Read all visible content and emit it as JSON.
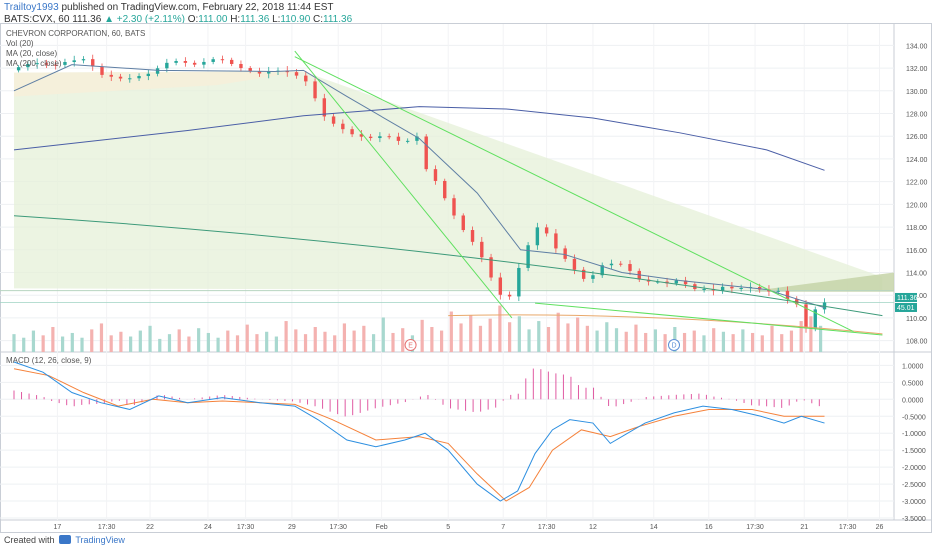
{
  "header": {
    "author": "Trailtoy1993",
    "published_text": "published on TradingView.com, February 22, 2018 11:44 EST",
    "symbol_line": "BATS:CVX, 60",
    "last_price": "111.36",
    "change_text": "▲ +2.30 (+2.11%)",
    "o_label": "O:",
    "o": "111.00",
    "h_label": "H:",
    "h": "111.36",
    "l_label": "L:",
    "l": "110.90",
    "c_label": "C:",
    "c": "111.36"
  },
  "legend": {
    "title": "CHEVRON CORPORATION, 60, BATS",
    "vol": "Vol (20)",
    "ma1": "MA (20, close)",
    "ma2": "MA (200, close)"
  },
  "macd_label": "MACD (12, 26, close, 9)",
  "footer": {
    "created_with": "Created with",
    "brand": "TradingView"
  },
  "price_badges": {
    "last": "111.36",
    "second": "45.01"
  },
  "colors": {
    "up": "#26a69a",
    "down": "#ef5350",
    "ma20": "#5f7fa4",
    "ma200": "#4a5ea6",
    "trend": "#5fe05f",
    "macd": "#2d8fe0",
    "signal": "#f5823b",
    "hist": "#e05aa2",
    "fill": "#e6f0d8"
  },
  "chart_data": [
    {
      "type": "candlestick",
      "title": "CHEVRON CORPORATION, 60, BATS",
      "ylim": [
        107,
        135
      ],
      "y_ticks": [
        108,
        110,
        112,
        114,
        116,
        118,
        120,
        122,
        124,
        126,
        128,
        130,
        132,
        134
      ],
      "x_tick_labels": [
        "17",
        "17:30",
        "22",
        "24",
        "17:30",
        "29",
        "17:30",
        "Feb",
        "5",
        "7",
        "17:30",
        "12",
        "14",
        "16",
        "17:30",
        "21",
        "17:30",
        "26"
      ],
      "event_markers": [
        "E",
        "D"
      ],
      "price_path": [
        [
          0,
          131.8
        ],
        [
          8,
          132.5
        ],
        [
          15,
          132.2
        ],
        [
          20,
          132.6
        ],
        [
          26,
          132.8
        ],
        [
          32,
          131.4
        ],
        [
          40,
          131.0
        ],
        [
          48,
          131.5
        ],
        [
          56,
          132.7
        ],
        [
          64,
          132.3
        ],
        [
          72,
          132.9
        ],
        [
          80,
          132.0
        ],
        [
          86,
          131.5
        ],
        [
          92,
          131.8
        ],
        [
          97,
          131.6
        ],
        [
          102,
          131.0
        ],
        [
          105,
          129.7
        ],
        [
          108,
          127.9
        ],
        [
          112,
          127.1
        ],
        [
          118,
          126.2
        ],
        [
          124,
          125.8
        ],
        [
          130,
          126.1
        ],
        [
          136,
          125.4
        ],
        [
          141,
          126.0
        ],
        [
          144,
          123.1
        ],
        [
          148,
          121.8
        ],
        [
          152,
          119.7
        ],
        [
          156,
          118.0
        ],
        [
          160,
          116.7
        ],
        [
          164,
          115.0
        ],
        [
          168,
          112.6
        ],
        [
          172,
          111.2
        ],
        [
          175,
          113.8
        ],
        [
          178,
          115.6
        ],
        [
          181,
          117.6
        ],
        [
          184,
          118.4
        ],
        [
          187,
          116.6
        ],
        [
          190,
          115.8
        ],
        [
          194,
          114.6
        ],
        [
          198,
          113.4
        ],
        [
          202,
          113.8
        ],
        [
          205,
          114.7
        ],
        [
          209,
          114.8
        ],
        [
          213,
          114.7
        ],
        [
          216,
          113.5
        ],
        [
          220,
          113.2
        ],
        [
          224,
          113.2
        ],
        [
          228,
          113.0
        ],
        [
          232,
          113.5
        ],
        [
          235,
          112.5
        ],
        [
          239,
          112.6
        ],
        [
          243,
          112.4
        ],
        [
          247,
          112.8
        ],
        [
          251,
          112.5
        ],
        [
          255,
          112.8
        ],
        [
          259,
          112.5
        ],
        [
          263,
          112.3
        ],
        [
          266,
          112.4
        ],
        [
          269,
          111.6
        ],
        [
          272,
          111.2
        ],
        [
          274,
          110.0
        ],
        [
          275,
          109.0
        ],
        [
          276,
          109.4
        ],
        [
          278,
          110.6
        ],
        [
          280,
          111.36
        ]
      ],
      "ma20_path": [
        [
          0,
          130.0
        ],
        [
          20,
          132.3
        ],
        [
          50,
          131.8
        ],
        [
          90,
          131.7
        ],
        [
          100,
          131.8
        ],
        [
          115,
          129.5
        ],
        [
          140,
          125.8
        ],
        [
          160,
          121.0
        ],
        [
          175,
          116.0
        ],
        [
          190,
          115.6
        ],
        [
          210,
          114.0
        ],
        [
          230,
          113.3
        ],
        [
          260,
          112.5
        ],
        [
          280,
          110.9
        ]
      ],
      "ma200_path": [
        [
          0,
          124.8
        ],
        [
          60,
          126.5
        ],
        [
          100,
          127.8
        ],
        [
          140,
          128.6
        ],
        [
          170,
          128.4
        ],
        [
          200,
          127.6
        ],
        [
          230,
          126.3
        ],
        [
          260,
          124.8
        ],
        [
          280,
          123.0
        ]
      ],
      "volume": [
        1.5,
        1.2,
        1.8,
        1.4,
        2.1,
        1.3,
        1.6,
        1.2,
        1.9,
        2.4,
        1.4,
        1.7,
        1.3,
        1.8,
        2.2,
        1.1,
        1.5,
        1.9,
        1.3,
        2.0,
        1.6,
        1.2,
        1.8,
        1.4,
        2.3,
        1.5,
        1.7,
        1.3,
        2.6,
        1.9,
        1.5,
        2.1,
        1.7,
        1.4,
        2.4,
        1.8,
        2.2,
        1.5,
        2.9,
        1.6,
        2.0,
        1.4,
        2.7,
        2.1,
        1.8,
        3.4,
        2.4,
        3.1,
        2.2,
        2.8,
        3.9,
        2.5,
        3.0,
        1.9,
        2.6,
        2.1,
        3.3,
        2.4,
        2.9,
        2.2,
        1.8,
        2.5,
        2.0,
        1.7,
        2.3,
        1.6,
        1.9,
        1.5,
        2.1,
        1.6,
        1.8,
        1.4,
        2.0,
        1.7,
        1.5,
        1.9,
        1.6,
        1.4,
        2.2,
        1.5,
        1.8,
        2.6,
        3.0,
        2.2
      ]
    },
    {
      "type": "line",
      "title": "MACD (12, 26, close, 9)",
      "ylim": [
        -3.5,
        1.1
      ],
      "y_ticks": [
        1.0,
        0.5,
        0.0,
        -0.5,
        -1.0,
        -1.5,
        -2.0,
        -2.5,
        -3.0,
        -3.5
      ],
      "y_tick_labels": [
        "1.0000",
        "0.5000",
        "0.0000",
        "-0.5000",
        "-1.0000",
        "-1.5000",
        "-2.0000",
        "-2.5000",
        "-3.0000",
        "-3.5000"
      ],
      "series": [
        {
          "values": [
            [
              0,
              1.1
            ],
            [
              10,
              0.8
            ],
            [
              20,
              0.2
            ],
            [
              30,
              -0.1
            ],
            [
              40,
              -0.3
            ],
            [
              50,
              0.1
            ],
            [
              60,
              -0.1
            ],
            [
              72,
              0.05
            ],
            [
              85,
              -0.1
            ],
            [
              97,
              -0.2
            ],
            [
              105,
              -0.6
            ],
            [
              115,
              -1.2
            ],
            [
              125,
              -1.4
            ],
            [
              135,
              -1.2
            ],
            [
              142,
              -1.0
            ],
            [
              150,
              -1.5
            ],
            [
              160,
              -2.5
            ],
            [
              168,
              -3.0
            ],
            [
              174,
              -2.7
            ],
            [
              180,
              -1.6
            ],
            [
              186,
              -0.9
            ],
            [
              192,
              -0.6
            ],
            [
              200,
              -0.7
            ],
            [
              206,
              -1.3
            ],
            [
              212,
              -1.0
            ],
            [
              218,
              -0.7
            ],
            [
              228,
              -0.4
            ],
            [
              238,
              -0.2
            ],
            [
              248,
              -0.3
            ],
            [
              258,
              -0.5
            ],
            [
              266,
              -0.7
            ],
            [
              272,
              -0.5
            ],
            [
              280,
              -0.7
            ]
          ]
        },
        {
          "values": [
            [
              0,
              0.9
            ],
            [
              12,
              0.7
            ],
            [
              24,
              0.2
            ],
            [
              36,
              -0.2
            ],
            [
              48,
              0.0
            ],
            [
              60,
              -0.1
            ],
            [
              72,
              -0.05
            ],
            [
              85,
              -0.1
            ],
            [
              97,
              -0.15
            ],
            [
              110,
              -0.6
            ],
            [
              125,
              -1.2
            ],
            [
              140,
              -1.1
            ],
            [
              150,
              -1.3
            ],
            [
              160,
              -2.2
            ],
            [
              170,
              -3.0
            ],
            [
              178,
              -2.6
            ],
            [
              186,
              -1.5
            ],
            [
              196,
              -0.9
            ],
            [
              206,
              -1.1
            ],
            [
              216,
              -0.8
            ],
            [
              228,
              -0.5
            ],
            [
              240,
              -0.3
            ],
            [
              255,
              -0.3
            ],
            [
              266,
              -0.5
            ],
            [
              280,
              -0.5
            ]
          ]
        }
      ]
    }
  ]
}
